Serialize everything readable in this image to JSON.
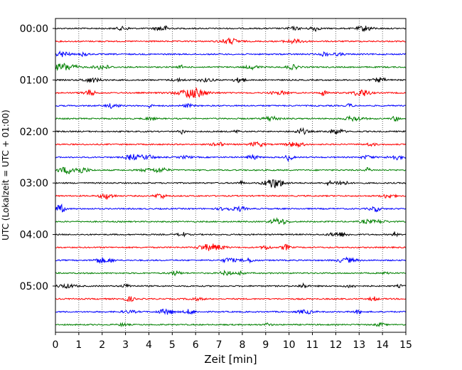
{
  "chart_data": {
    "type": "line",
    "title": "",
    "xlabel": "Zeit  [min]",
    "ylabel": "UTC (Lokalzeit = UTC + 01:00)",
    "xlim": [
      0,
      15
    ],
    "x_ticks": [
      "0",
      "1",
      "2",
      "3",
      "4",
      "5",
      "6",
      "7",
      "8",
      "9",
      "10",
      "11",
      "12",
      "13",
      "14",
      "15"
    ],
    "y_ticks": [
      "00:00",
      "01:00",
      "02:00",
      "03:00",
      "04:00",
      "05:00"
    ],
    "grid": "vertical dotted at each minute",
    "trace_interval_minutes": 15,
    "trace_count": 24,
    "trace_colors": [
      "#000000",
      "#ff0000",
      "#0000ff",
      "#008000"
    ],
    "event_note": "larger oscillation near 01:15 trace around minutes 5-7"
  }
}
